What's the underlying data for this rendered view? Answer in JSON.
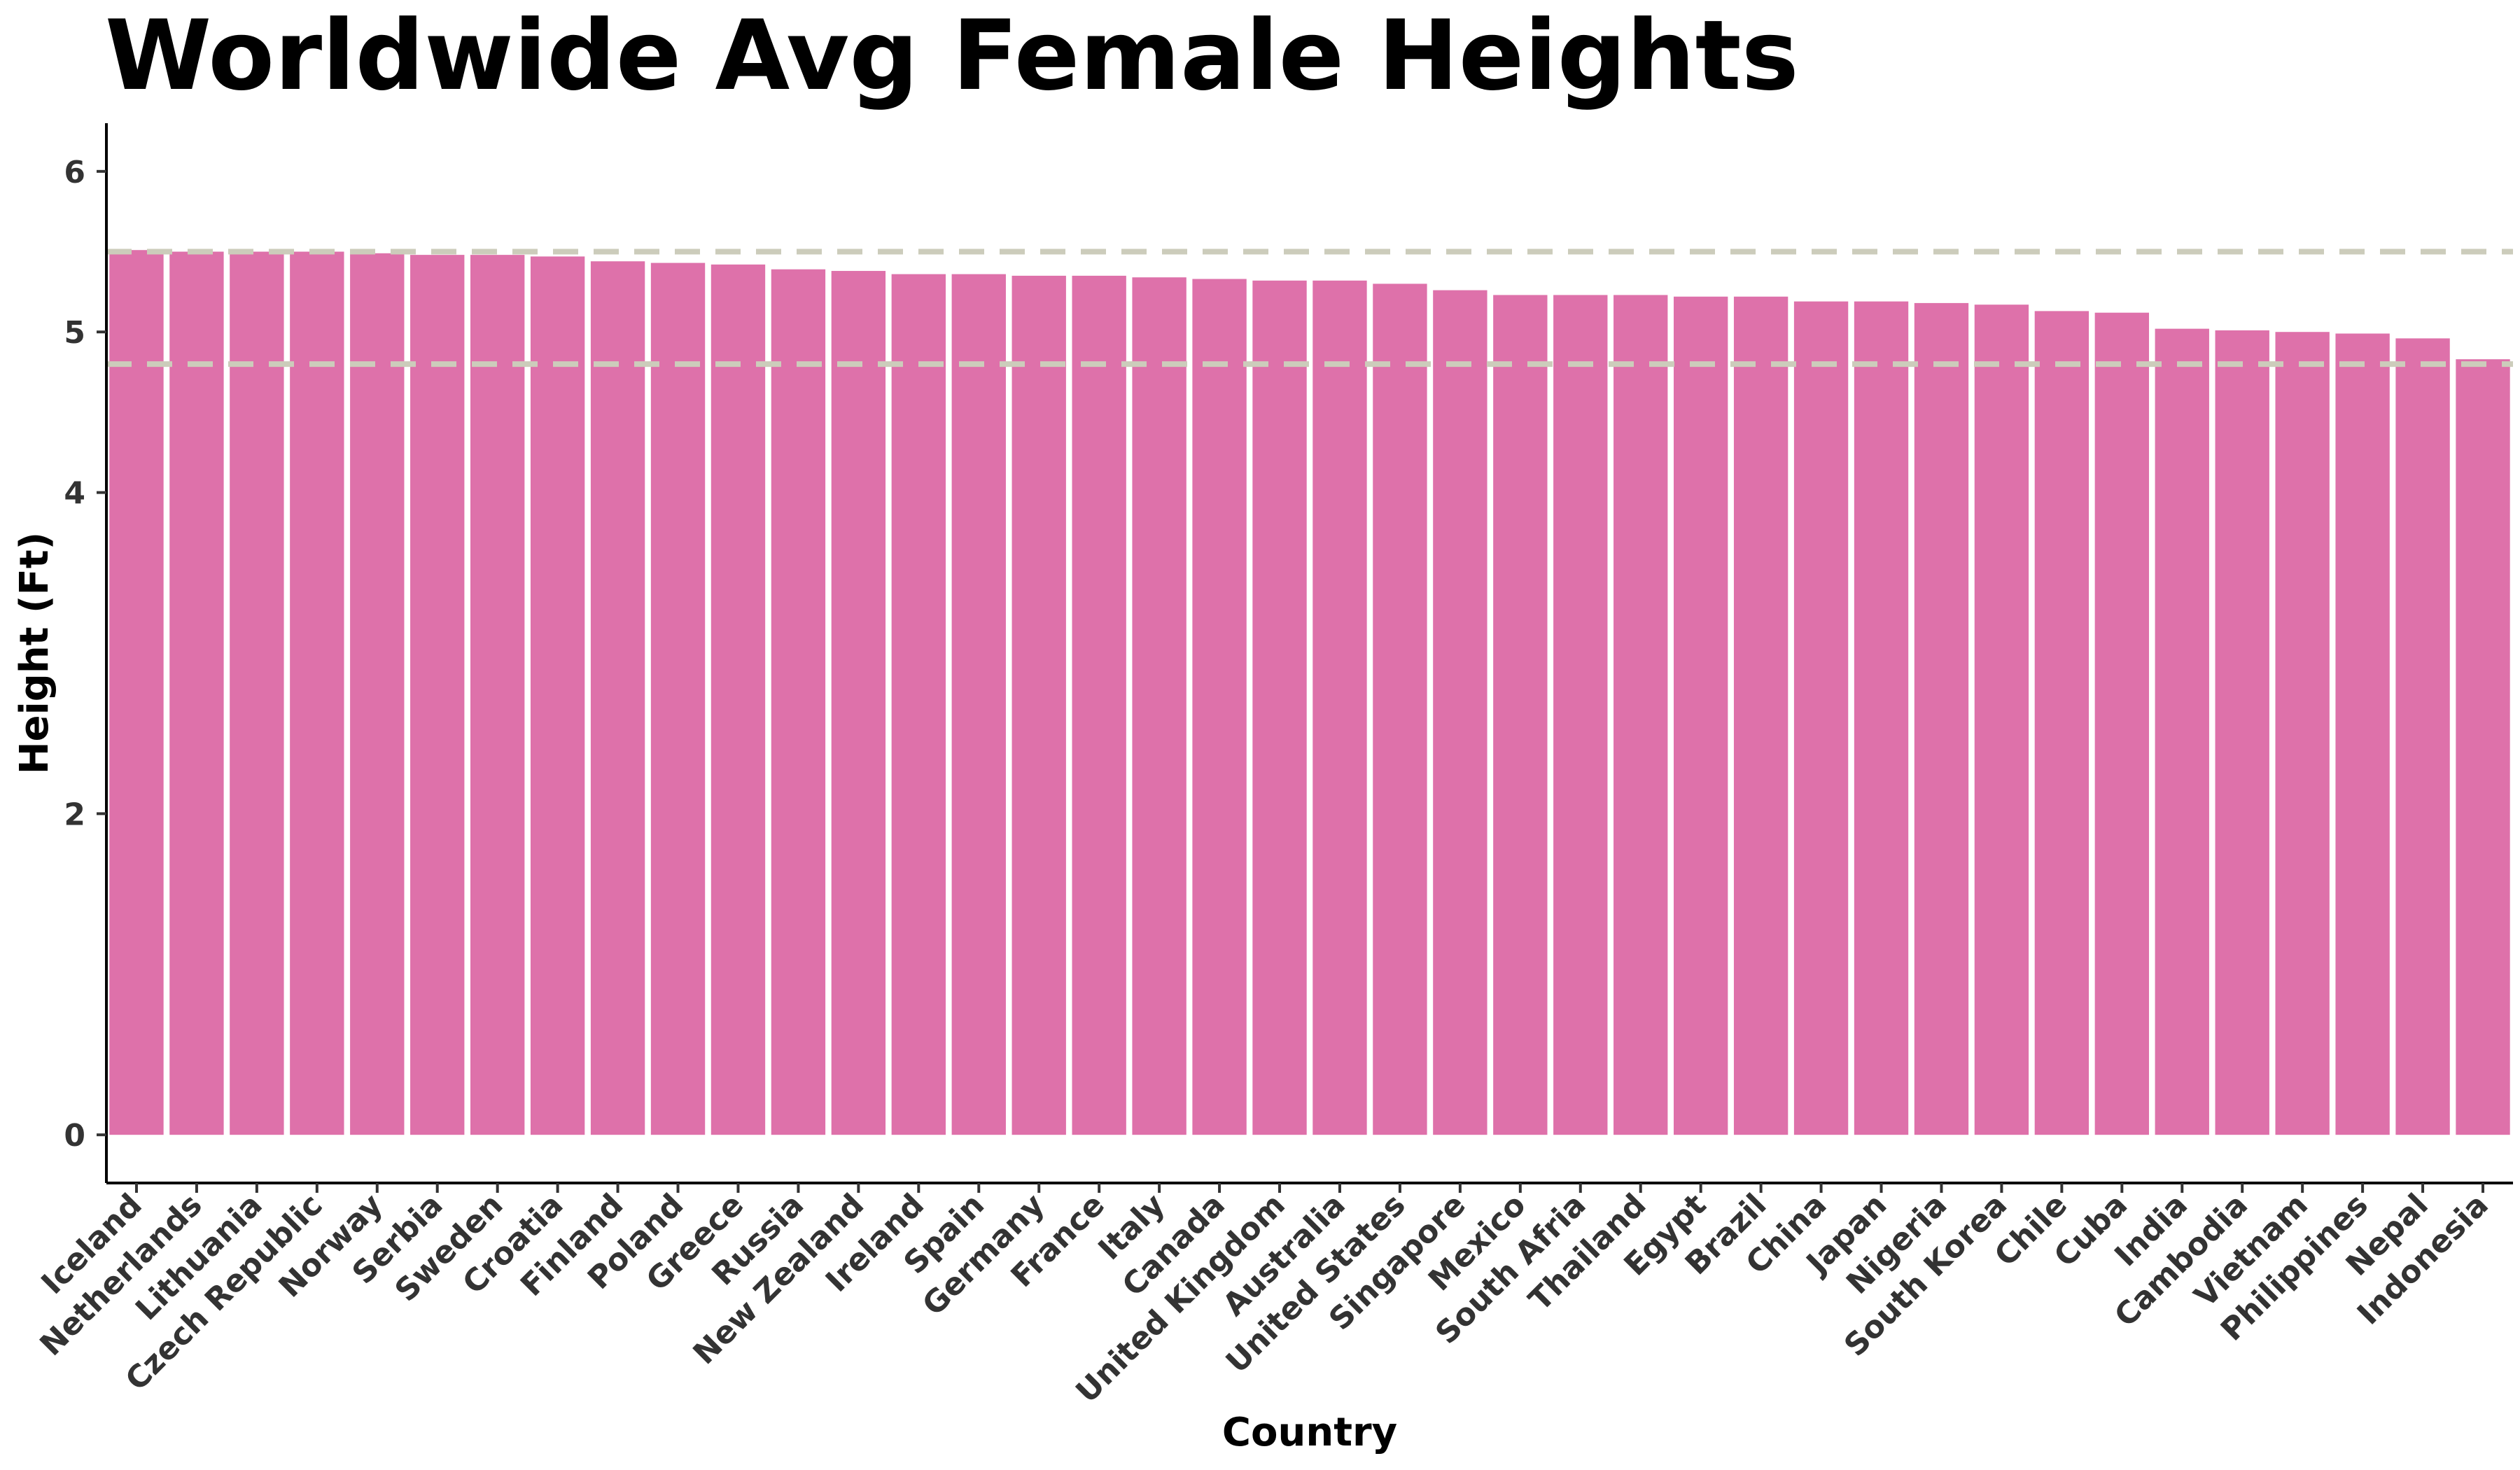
{
  "chart_data": {
    "type": "bar",
    "title": "Worldwide Avg Female Heights",
    "xlabel": "Country",
    "ylabel": "Height (Ft)",
    "ylim": [
      -0.3,
      6.3
    ],
    "yticks": [
      0,
      2,
      4,
      5,
      6
    ],
    "grid": false,
    "bar_color": "#DE71AA",
    "reference_line_color": "#CCCCBB",
    "reference_lines": [
      5.5,
      4.8
    ],
    "categories": [
      "Iceland",
      "Netherlands",
      "Lithuania",
      "Czech Republic",
      "Norway",
      "Serbia",
      "Sweden",
      "Croatia",
      "Finland",
      "Poland",
      "Greece",
      "Russia",
      "New Zealand",
      "Ireland",
      "Spain",
      "Germany",
      "France",
      "Italy",
      "Canada",
      "United Kingdom",
      "Australia",
      "United States",
      "Singapore",
      "Mexico",
      "South Afria",
      "Thailand",
      "Egypt",
      "Brazil",
      "China",
      "Japan",
      "Nigeria",
      "South Korea",
      "Chile",
      "Cuba",
      "India",
      "Cambodia",
      "Vietnam",
      "Philippines",
      "Nepal",
      "Indonesia"
    ],
    "values": [
      5.51,
      5.5,
      5.5,
      5.5,
      5.49,
      5.48,
      5.48,
      5.47,
      5.44,
      5.43,
      5.42,
      5.39,
      5.38,
      5.36,
      5.36,
      5.35,
      5.35,
      5.34,
      5.33,
      5.32,
      5.32,
      5.3,
      5.26,
      5.23,
      5.23,
      5.23,
      5.22,
      5.22,
      5.19,
      5.19,
      5.18,
      5.17,
      5.13,
      5.12,
      5.02,
      5.01,
      5.0,
      4.99,
      4.96,
      4.83
    ]
  }
}
